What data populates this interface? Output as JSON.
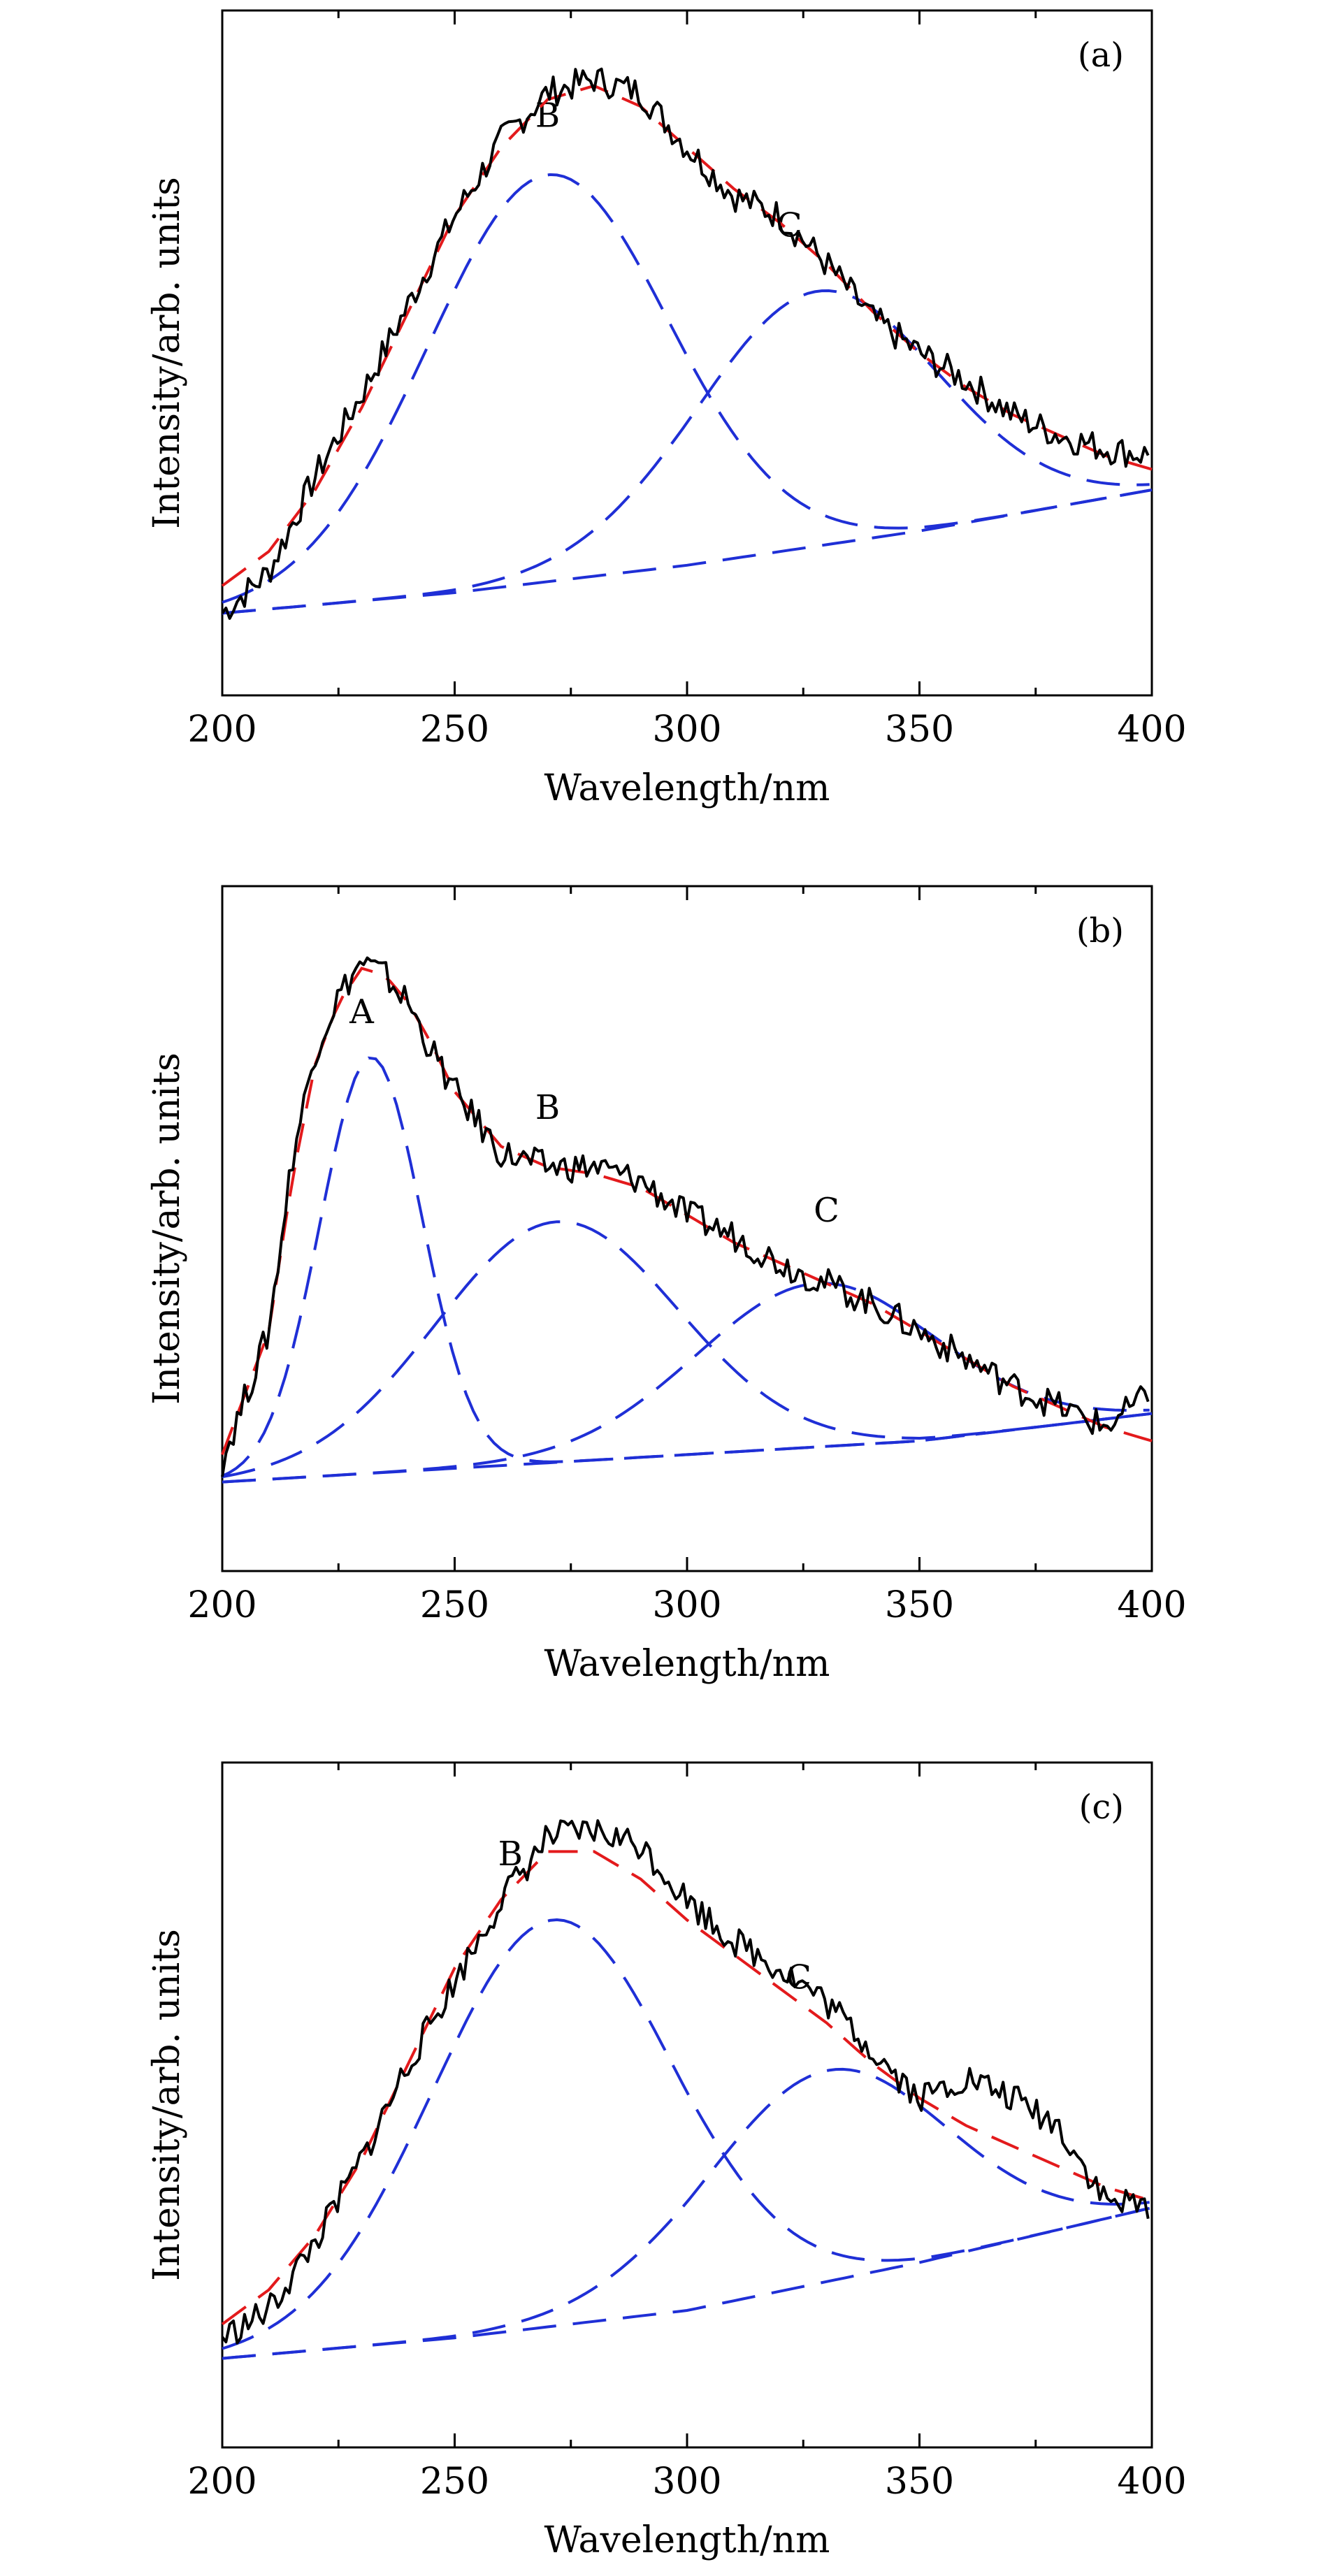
{
  "colors": {
    "measured": "#000000",
    "fit": "#e31a1c",
    "components": "#1f2fd6"
  },
  "chart_data": [
    {
      "type": "line",
      "panel_label": "(a)",
      "xlabel": "Wavelength/nm",
      "ylabel": "Intensity/arb. units",
      "xlim": [
        200,
        400
      ],
      "xticks": [
        "200",
        "250",
        "300",
        "350",
        "400"
      ],
      "ylim": [
        0,
        100
      ],
      "grid": false,
      "measured": {
        "x": [
          200,
          210,
          220,
          230,
          240,
          250,
          260,
          270,
          280,
          290,
          300,
          310,
          320,
          330,
          340,
          350,
          360,
          370,
          380,
          390,
          400
        ],
        "y": [
          12,
          18,
          32,
          44,
          57,
          70,
          81,
          88,
          90,
          88,
          80,
          73,
          70,
          63,
          55,
          50,
          46,
          41,
          38,
          36,
          35
        ]
      },
      "fit": {
        "x": [
          200,
          210,
          220,
          230,
          240,
          250,
          260,
          270,
          280,
          290,
          300,
          310,
          320,
          330,
          340,
          350,
          360,
          370,
          380,
          390,
          400
        ],
        "y": [
          16,
          21,
          30,
          42,
          56,
          70,
          80,
          87,
          89,
          86,
          80,
          74,
          69,
          63,
          56,
          50,
          45,
          41,
          38,
          35,
          33
        ]
      },
      "components": [
        {
          "label": "B",
          "peak_x": 270,
          "peak_y": 76,
          "label_pos": [
            270,
            83
          ]
        },
        {
          "label": "C",
          "peak_x": 328,
          "peak_y": 59,
          "label_pos": [
            322,
            67
          ]
        }
      ],
      "baseline": {
        "x": [
          200,
          250,
          300,
          350,
          400
        ],
        "y": [
          12,
          15,
          19,
          24,
          30
        ]
      }
    },
    {
      "type": "line",
      "panel_label": "(b)",
      "xlabel": "Wavelength/nm",
      "ylabel": "Intensity/arb. units",
      "xlim": [
        200,
        400
      ],
      "xticks": [
        "200",
        "250",
        "300",
        "350",
        "400"
      ],
      "ylim": [
        0,
        100
      ],
      "grid": false,
      "measured": {
        "x": [
          200,
          210,
          215,
          220,
          225,
          230,
          235,
          240,
          245,
          250,
          260,
          270,
          280,
          290,
          300,
          310,
          320,
          330,
          340,
          350,
          360,
          370,
          380,
          390,
          400
        ],
        "y": [
          16,
          35,
          60,
          76,
          84,
          89,
          87,
          83,
          76,
          70,
          61,
          59,
          59,
          57,
          52,
          49,
          45,
          42,
          39,
          35,
          31,
          27,
          24,
          21,
          26
        ]
      },
      "fit": {
        "x": [
          200,
          210,
          215,
          220,
          225,
          230,
          235,
          240,
          245,
          250,
          260,
          270,
          280,
          290,
          300,
          310,
          320,
          330,
          340,
          350,
          360,
          370,
          380,
          390,
          400
        ],
        "y": [
          17,
          35,
          57,
          74,
          83,
          88,
          87,
          83,
          77,
          70,
          62,
          59,
          58,
          56,
          52,
          48,
          45,
          42,
          39,
          35,
          31,
          27,
          24,
          21,
          19
        ]
      },
      "components": [
        {
          "label": "A",
          "peak_x": 232,
          "peak_y": 75,
          "label_pos": [
            230,
            80
          ]
        },
        {
          "label": "B",
          "peak_x": 272,
          "peak_y": 51,
          "label_pos": [
            270,
            66
          ]
        },
        {
          "label": "C",
          "peak_x": 328,
          "peak_y": 42,
          "label_pos": [
            330,
            51
          ]
        }
      ],
      "baseline": {
        "x": [
          200,
          250,
          300,
          350,
          400
        ],
        "y": [
          13,
          15,
          17,
          19,
          23
        ]
      }
    },
    {
      "type": "line",
      "panel_label": "(c)",
      "xlabel": "Wavelength/nm",
      "ylabel": "Intensity/arb. units",
      "xlim": [
        200,
        400
      ],
      "xticks": [
        "200",
        "250",
        "300",
        "350",
        "400"
      ],
      "ylim": [
        0,
        100
      ],
      "grid": false,
      "measured": {
        "x": [
          200,
          210,
          220,
          230,
          240,
          250,
          260,
          270,
          280,
          290,
          300,
          310,
          320,
          330,
          340,
          350,
          360,
          370,
          380,
          390,
          400
        ],
        "y": [
          16,
          20,
          30,
          42,
          56,
          68,
          80,
          89,
          90,
          88,
          80,
          74,
          70,
          65,
          58,
          51,
          54,
          51,
          47,
          36,
          35
        ]
      },
      "fit": {
        "x": [
          200,
          210,
          220,
          230,
          240,
          250,
          260,
          270,
          280,
          290,
          300,
          310,
          320,
          330,
          340,
          350,
          360,
          370,
          380,
          390,
          400
        ],
        "y": [
          18,
          23,
          31,
          42,
          56,
          70,
          80,
          87,
          87,
          83,
          77,
          72,
          67,
          62,
          56,
          51,
          47,
          44,
          41,
          38,
          36
        ]
      },
      "components": [
        {
          "label": "B",
          "peak_x": 271,
          "peak_y": 77,
          "label_pos": [
            262,
            85
          ]
        },
        {
          "label": "C",
          "peak_x": 330,
          "peak_y": 55,
          "label_pos": [
            324,
            67
          ]
        }
      ],
      "baseline": {
        "x": [
          200,
          250,
          300,
          350,
          400
        ],
        "y": [
          13,
          16,
          20,
          27,
          35
        ]
      }
    }
  ]
}
